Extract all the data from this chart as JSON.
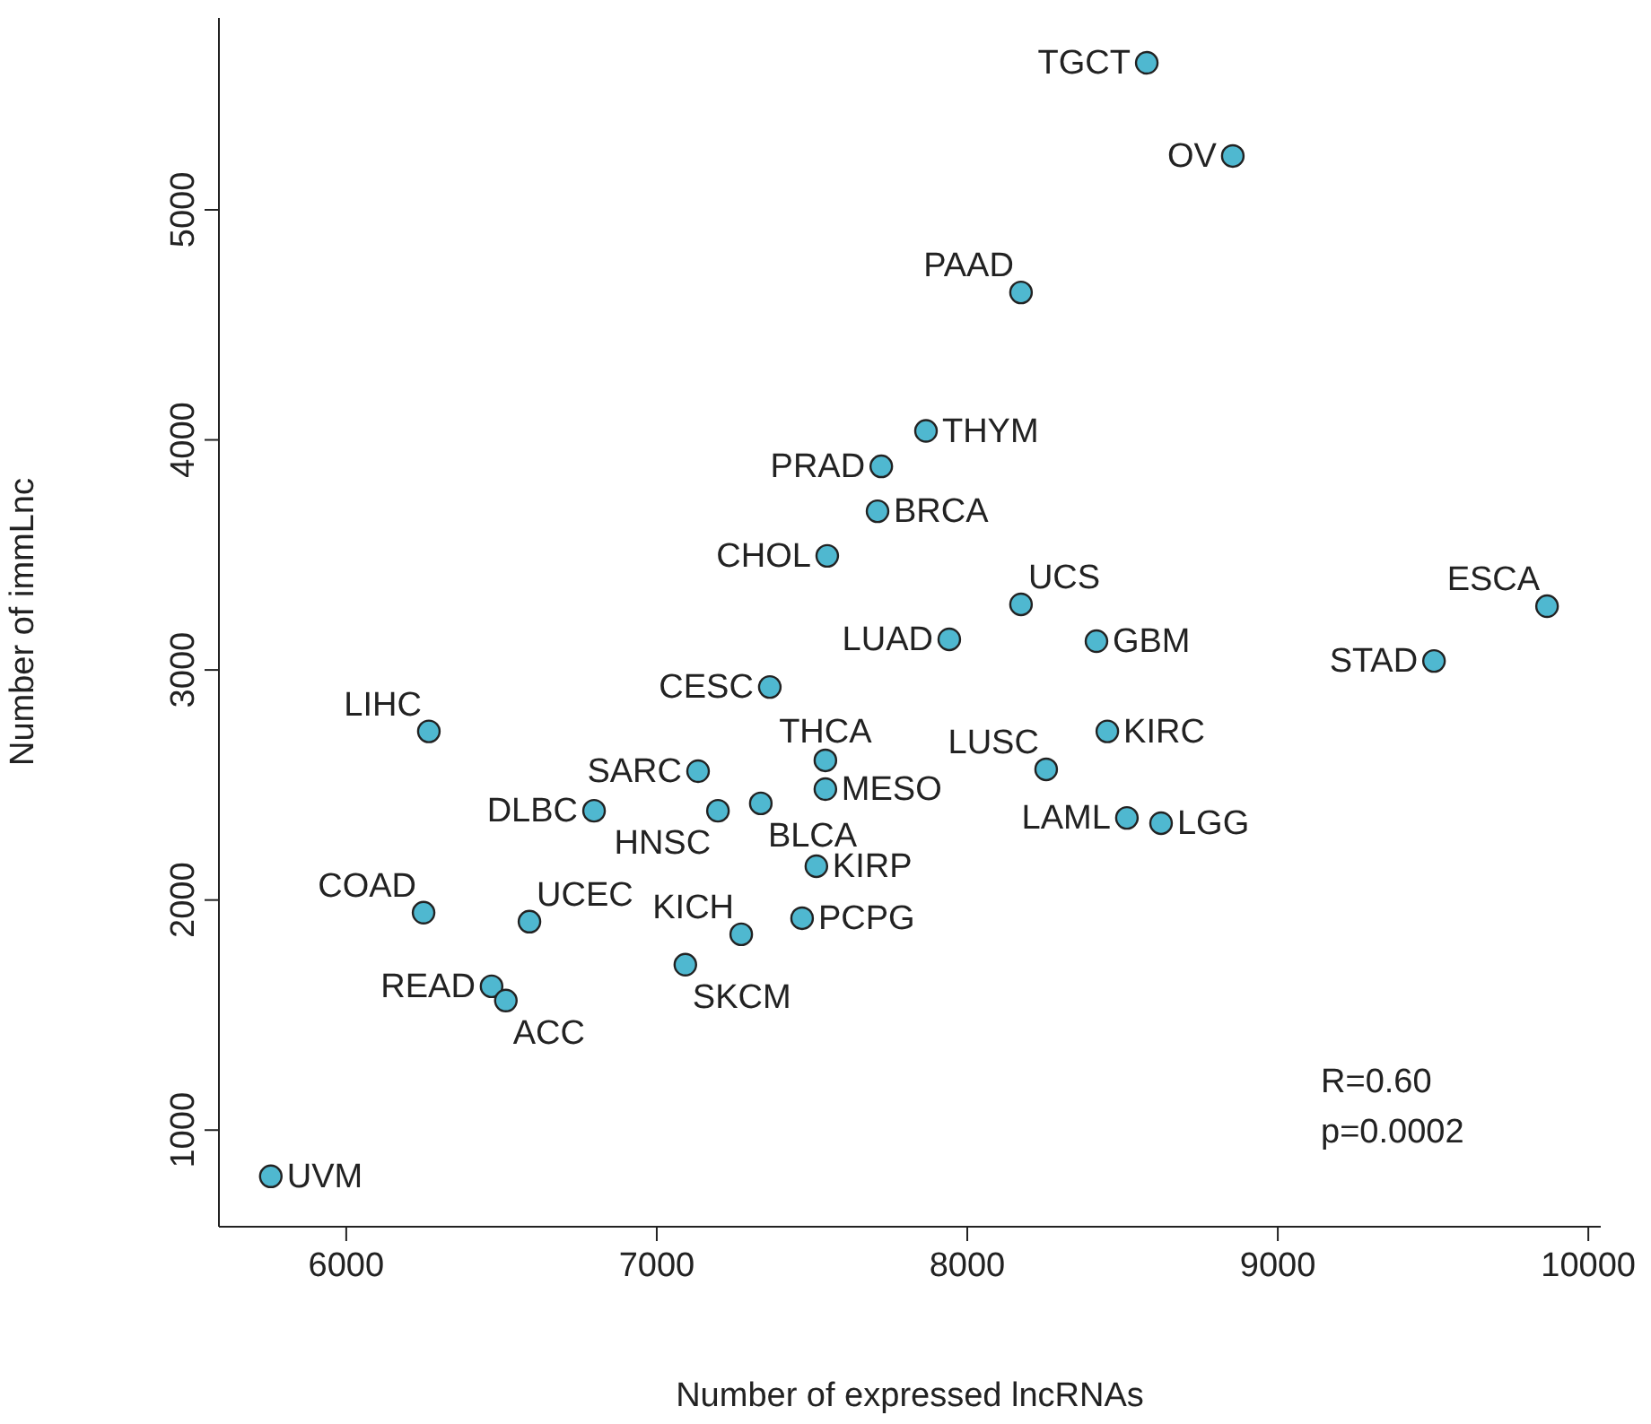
{
  "chart_data": {
    "type": "scatter",
    "xlabel": "Number of expressed lncRNAs",
    "ylabel": "Number of immLnc",
    "series": [
      {
        "color": "#4fb8d0",
        "x": [
          8578,
          8855,
          8173,
          7867,
          7723,
          7711,
          7549,
          8173,
          7942,
          8416,
          9503,
          9867,
          7364,
          6266,
          7133,
          7543,
          8254,
          8451,
          7543,
          6798,
          7197,
          7335,
          8514,
          8624,
          7514,
          7468,
          7272,
          7092,
          6249,
          6590,
          6468,
          6514,
          5757
        ],
        "values": [
          5639,
          5234,
          4641,
          4039,
          3885,
          3690,
          3496,
          3285,
          3133,
          3125,
          3039,
          3277,
          2926,
          2733,
          2560,
          2607,
          2568,
          2733,
          2482,
          2388,
          2388,
          2420,
          2357,
          2334,
          2147,
          1921,
          1851,
          1719,
          1945,
          1906,
          1625,
          1563,
          799
        ]
      }
    ],
    "xlim": [
      5590,
      10040
    ],
    "xticks": [
      6000,
      7000,
      8000,
      9000,
      10000
    ],
    "ylim": [
      580,
      5834
    ],
    "yticks": [
      1000,
      2000,
      3000,
      4000,
      5000
    ],
    "grid": false,
    "legend": false,
    "marker": "circle",
    "annotations": [
      {
        "text": "TGCT",
        "x": 8578,
        "y": 5639
      },
      {
        "text": "OV",
        "x": 8855,
        "y": 5234
      },
      {
        "text": "PAAD",
        "x": 8173,
        "y": 4641
      },
      {
        "text": "THYM",
        "x": 7867,
        "y": 4039
      },
      {
        "text": "PRAD",
        "x": 7723,
        "y": 3885
      },
      {
        "text": "BRCA",
        "x": 7711,
        "y": 3690
      },
      {
        "text": "CHOL",
        "x": 7549,
        "y": 3496
      },
      {
        "text": "UCS",
        "x": 8173,
        "y": 3285
      },
      {
        "text": "LUAD",
        "x": 7942,
        "y": 3133
      },
      {
        "text": "GBM",
        "x": 8416,
        "y": 3125
      },
      {
        "text": "STAD",
        "x": 9503,
        "y": 3039
      },
      {
        "text": "ESCA",
        "x": 9867,
        "y": 3277
      },
      {
        "text": "CESC",
        "x": 7364,
        "y": 2926
      },
      {
        "text": "LIHC",
        "x": 6266,
        "y": 2733
      },
      {
        "text": "SARC",
        "x": 7133,
        "y": 2560
      },
      {
        "text": "THCA",
        "x": 7543,
        "y": 2607
      },
      {
        "text": "LUSC",
        "x": 8254,
        "y": 2568
      },
      {
        "text": "KIRC",
        "x": 8451,
        "y": 2733
      },
      {
        "text": "MESO",
        "x": 7543,
        "y": 2482
      },
      {
        "text": "DLBC",
        "x": 6798,
        "y": 2388
      },
      {
        "text": "HNSC",
        "x": 7197,
        "y": 2388
      },
      {
        "text": "BLCA",
        "x": 7335,
        "y": 2420
      },
      {
        "text": "LAML",
        "x": 8514,
        "y": 2357
      },
      {
        "text": "LGG",
        "x": 8624,
        "y": 2334
      },
      {
        "text": "KIRP",
        "x": 7514,
        "y": 2147
      },
      {
        "text": "PCPG",
        "x": 7468,
        "y": 1921
      },
      {
        "text": "KICH",
        "x": 7272,
        "y": 1851
      },
      {
        "text": "SKCM",
        "x": 7092,
        "y": 1719
      },
      {
        "text": "COAD",
        "x": 6249,
        "y": 1945
      },
      {
        "text": "UCEC",
        "x": 6590,
        "y": 1906
      },
      {
        "text": "READ",
        "x": 6468,
        "y": 1625
      },
      {
        "text": "ACC",
        "x": 6514,
        "y": 1563
      },
      {
        "text": "UVM",
        "x": 5757,
        "y": 799
      },
      "R=0.60",
      "p=0.0002"
    ]
  }
}
